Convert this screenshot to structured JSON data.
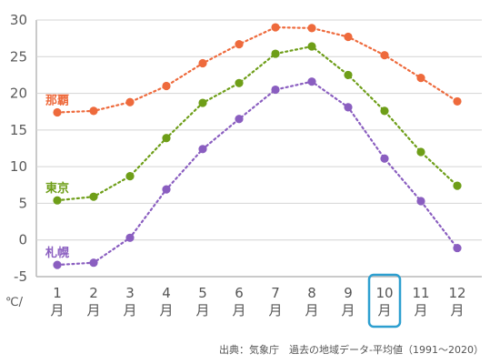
{
  "chart_data": {
    "type": "line",
    "categories": [
      "1|月",
      "2|月",
      "3|月",
      "4|月",
      "5|月",
      "6|月",
      "7|月",
      "8|月",
      "9|月",
      "10|月",
      "11|月",
      "12|月"
    ],
    "ylim": [
      -5,
      30
    ],
    "yticks": [
      -5,
      0,
      5,
      10,
      15,
      20,
      25,
      30
    ],
    "y_unit": "℃/",
    "highlight_category_index": 9,
    "grid": true,
    "series": [
      {
        "name": "那覇",
        "color": "#ee6a3c",
        "values": [
          17.4,
          17.6,
          18.8,
          21.0,
          24.1,
          26.7,
          29.0,
          28.9,
          27.7,
          25.2,
          22.1,
          18.9
        ]
      },
      {
        "name": "東京",
        "color": "#6e9e18",
        "values": [
          5.4,
          5.9,
          8.7,
          13.9,
          18.7,
          21.4,
          25.4,
          26.4,
          22.5,
          17.6,
          12.0,
          7.4
        ]
      },
      {
        "name": "札幌",
        "color": "#8a5ec0",
        "values": [
          -3.4,
          -3.1,
          0.3,
          6.9,
          12.4,
          16.5,
          20.5,
          21.6,
          18.1,
          11.1,
          5.3,
          -1.1
        ]
      }
    ],
    "source": "出典：気象庁　過去の地域データ-平均値（1991～2020）"
  }
}
